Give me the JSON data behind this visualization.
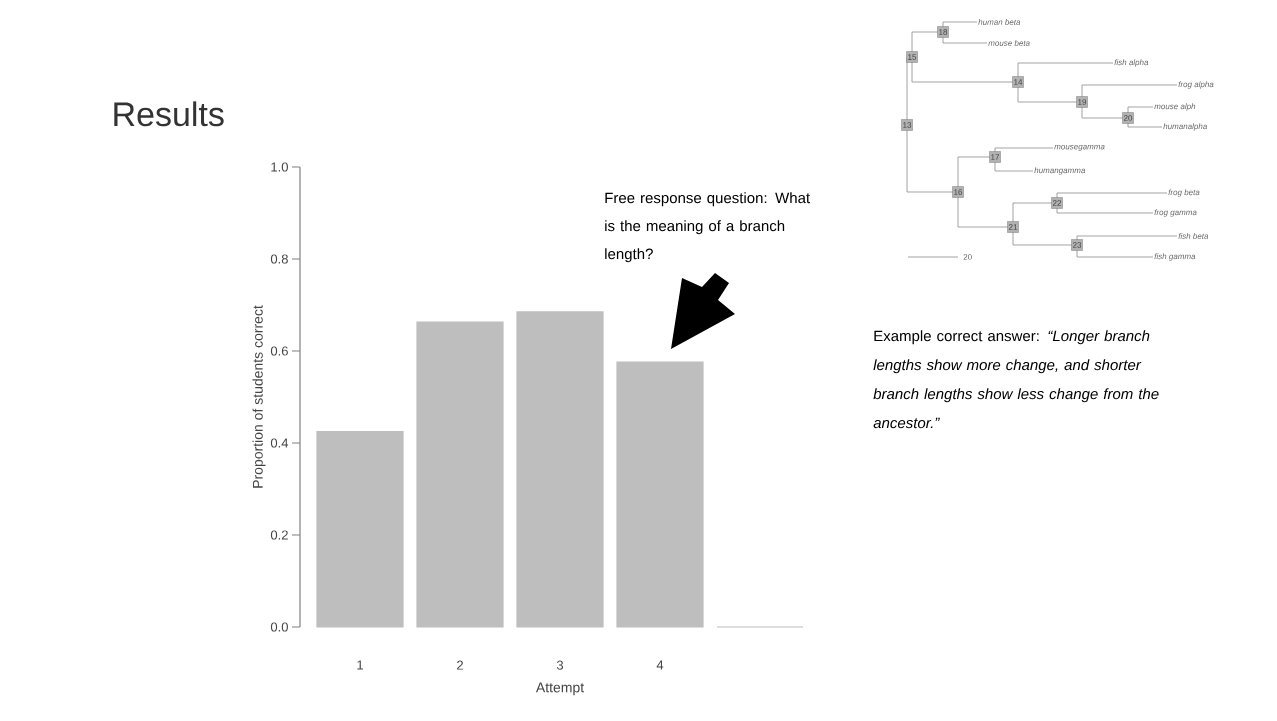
{
  "chart_data": {
    "type": "bar",
    "title": "Results",
    "xlabel": "Attempt",
    "ylabel": "Proportion of students correct",
    "categories": [
      "1",
      "2",
      "3",
      "4",
      null
    ],
    "values": [
      0.425,
      0.663,
      0.685,
      0.576,
      0
    ],
    "color": "#bebebe",
    "ylim": [
      0,
      1
    ],
    "yticks": [
      {
        "value": 0,
        "label": "0.0"
      },
      {
        "value": 0.2,
        "label": "0.2"
      },
      {
        "value": 0.4,
        "label": "0.4"
      },
      {
        "value": 0.6,
        "label": "0.6"
      },
      {
        "value": 0.8,
        "label": "0.8"
      },
      {
        "value": 1,
        "label": "1.0"
      }
    ],
    "annotations": [
      "Free response question: What is the meaning of a branch length?",
      "Example correct answer: *“Longer branch lengths show more change, and shorter branch lengths show less change from the ancestor.”*",
      "*human beta*",
      "*mouse beta*",
      "*fish alpha*",
      "*frog alpha*",
      "*mouse alph*",
      "*humanalpha*",
      "*mousegamma*",
      "*humangamma*",
      "*frog beta*",
      "*frog gamma*",
      "*fish beta*",
      "*fish gamma*",
      "18",
      "15",
      "14",
      "19",
      "20",
      "13",
      "17",
      "16",
      "22",
      "21",
      "23",
      "20"
    ]
  }
}
